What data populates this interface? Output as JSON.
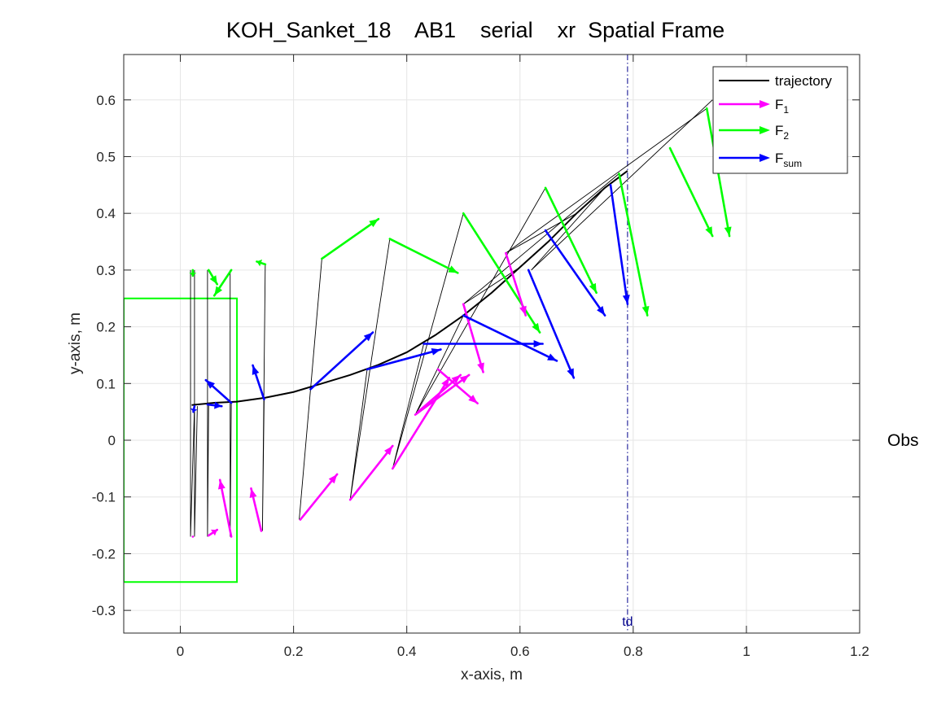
{
  "chart_data": {
    "type": "line",
    "title": "KOH_Sanket_18    AB1    serial    xr  Spatial Frame",
    "xlabel": "x-axis, m",
    "ylabel": "y-axis, m",
    "xlim": [
      -0.1,
      1.2
    ],
    "ylim": [
      -0.34,
      0.68
    ],
    "xticks": [
      0,
      0.2,
      0.4,
      0.6,
      0.8,
      1,
      1.2
    ],
    "xtick_labels": [
      "0",
      "0.2",
      "0.4",
      "0.6",
      "0.8",
      "1",
      "1.2"
    ],
    "yticks": [
      -0.3,
      -0.2,
      -0.1,
      0,
      0.1,
      0.2,
      0.3,
      0.4,
      0.5,
      0.6
    ],
    "ytick_labels": [
      "-0.3",
      "-0.2",
      "-0.1",
      "0",
      "0.1",
      "0.2",
      "0.3",
      "0.4",
      "0.5",
      "0.6"
    ],
    "grid": true,
    "legend_position": "top-right",
    "colors": {
      "trajectory": "#000000",
      "f1": "#ff00ff",
      "f2": "#00ff00",
      "fsum": "#0000ff",
      "obstacle": "#00ff00",
      "td": "#00008b"
    },
    "legend": [
      {
        "key": "trajectory",
        "label": "trajectory",
        "sub": ""
      },
      {
        "key": "f1",
        "label": "F",
        "sub": "1"
      },
      {
        "key": "f2",
        "label": "F",
        "sub": "2"
      },
      {
        "key": "fsum",
        "label": "F",
        "sub": "sum"
      }
    ],
    "trajectory": {
      "x": [
        0.02,
        0.06,
        0.1,
        0.15,
        0.2,
        0.25,
        0.3,
        0.35,
        0.4,
        0.45,
        0.5,
        0.55,
        0.6,
        0.65,
        0.7,
        0.75,
        0.79
      ],
      "y": [
        0.062,
        0.066,
        0.068,
        0.075,
        0.085,
        0.1,
        0.115,
        0.133,
        0.155,
        0.185,
        0.22,
        0.26,
        0.305,
        0.35,
        0.4,
        0.445,
        0.475
      ]
    },
    "links": [
      {
        "x": [
          0.018,
          0.018,
          0.025
        ],
        "y": [
          0.3,
          -0.17,
          0.06
        ]
      },
      {
        "x": [
          0.025,
          0.025,
          0.03
        ],
        "y": [
          0.3,
          -0.17,
          0.06
        ]
      },
      {
        "x": [
          0.048,
          0.048,
          0.05
        ],
        "y": [
          0.3,
          -0.17,
          0.063
        ]
      },
      {
        "x": [
          0.088,
          0.088,
          0.09
        ],
        "y": [
          0.3,
          -0.17,
          0.066
        ]
      },
      {
        "x": [
          0.15,
          0.145,
          0.148
        ],
        "y": [
          0.31,
          -0.16,
          0.072
        ]
      },
      {
        "x": [
          0.25,
          0.21,
          0.23
        ],
        "y": [
          0.32,
          -0.14,
          0.09
        ]
      },
      {
        "x": [
          0.37,
          0.3,
          0.33
        ],
        "y": [
          0.355,
          -0.105,
          0.125
        ]
      },
      {
        "x": [
          0.5,
          0.375,
          0.43
        ],
        "y": [
          0.4,
          -0.05,
          0.17
        ]
      },
      {
        "x": [
          0.645,
          0.415,
          0.5
        ],
        "y": [
          0.445,
          0.045,
          0.22
        ]
      },
      {
        "x": [
          0.775,
          0.5,
          0.6
        ],
        "y": [
          0.47,
          0.24,
          0.305
        ]
      },
      {
        "x": [
          0.93,
          0.575,
          0.7
        ],
        "y": [
          0.585,
          0.33,
          0.4
        ]
      },
      {
        "x": [
          0.94,
          0.62,
          0.75
        ],
        "y": [
          0.6,
          0.3,
          0.445
        ]
      }
    ],
    "f1_arrows": [
      {
        "x": 0.022,
        "y": -0.17,
        "u": 0.0,
        "v": 0.0
      },
      {
        "x": 0.05,
        "y": -0.168,
        "u": 0.015,
        "v": 0.01
      },
      {
        "x": 0.09,
        "y": -0.17,
        "u": -0.02,
        "v": 0.1
      },
      {
        "x": 0.143,
        "y": -0.16,
        "u": -0.018,
        "v": 0.075
      },
      {
        "x": 0.212,
        "y": -0.14,
        "u": 0.065,
        "v": 0.08
      },
      {
        "x": 0.3,
        "y": -0.105,
        "u": 0.075,
        "v": 0.095
      },
      {
        "x": 0.375,
        "y": -0.05,
        "u": 0.1,
        "v": 0.16
      },
      {
        "x": 0.415,
        "y": 0.045,
        "u": 0.095,
        "v": 0.07
      },
      {
        "x": 0.42,
        "y": 0.05,
        "u": 0.075,
        "v": 0.065
      },
      {
        "x": 0.455,
        "y": 0.125,
        "u": 0.07,
        "v": -0.06
      },
      {
        "x": 0.5,
        "y": 0.24,
        "u": 0.035,
        "v": -0.12
      },
      {
        "x": 0.575,
        "y": 0.33,
        "u": 0.035,
        "v": -0.11
      }
    ],
    "f2_arrows": [
      {
        "x": 0.022,
        "y": 0.3,
        "u": 0.0,
        "v": -0.01
      },
      {
        "x": 0.05,
        "y": 0.3,
        "u": 0.015,
        "v": -0.025
      },
      {
        "x": 0.09,
        "y": 0.3,
        "u": -0.03,
        "v": -0.045
      },
      {
        "x": 0.15,
        "y": 0.31,
        "u": -0.015,
        "v": 0.005
      },
      {
        "x": 0.25,
        "y": 0.32,
        "u": 0.1,
        "v": 0.07
      },
      {
        "x": 0.37,
        "y": 0.355,
        "u": 0.12,
        "v": -0.06
      },
      {
        "x": 0.5,
        "y": 0.4,
        "u": 0.135,
        "v": -0.21
      },
      {
        "x": 0.645,
        "y": 0.445,
        "u": 0.09,
        "v": -0.185
      },
      {
        "x": 0.775,
        "y": 0.47,
        "u": 0.05,
        "v": -0.25
      },
      {
        "x": 0.865,
        "y": 0.515,
        "u": 0.075,
        "v": -0.155
      },
      {
        "x": 0.93,
        "y": 0.585,
        "u": 0.04,
        "v": -0.225
      }
    ],
    "fsum_arrows": [
      {
        "x": 0.025,
        "y": 0.06,
        "u": -0.002,
        "v": -0.01
      },
      {
        "x": 0.048,
        "y": 0.063,
        "u": 0.025,
        "v": -0.003
      },
      {
        "x": 0.09,
        "y": 0.066,
        "u": -0.045,
        "v": 0.04
      },
      {
        "x": 0.148,
        "y": 0.072,
        "u": -0.02,
        "v": 0.06
      },
      {
        "x": 0.23,
        "y": 0.09,
        "u": 0.11,
        "v": 0.1
      },
      {
        "x": 0.33,
        "y": 0.125,
        "u": 0.13,
        "v": 0.035
      },
      {
        "x": 0.43,
        "y": 0.17,
        "u": 0.21,
        "v": 0.0
      },
      {
        "x": 0.5,
        "y": 0.22,
        "u": 0.165,
        "v": -0.08
      },
      {
        "x": 0.615,
        "y": 0.3,
        "u": 0.08,
        "v": -0.19
      },
      {
        "x": 0.645,
        "y": 0.37,
        "u": 0.105,
        "v": -0.15
      },
      {
        "x": 0.76,
        "y": 0.45,
        "u": 0.03,
        "v": -0.21
      }
    ],
    "obstacle": {
      "x": [
        -0.1,
        0.1
      ],
      "y": [
        -0.25,
        0.25
      ],
      "label": "Obs"
    },
    "td_line": {
      "x": 0.79,
      "label": "td"
    }
  }
}
